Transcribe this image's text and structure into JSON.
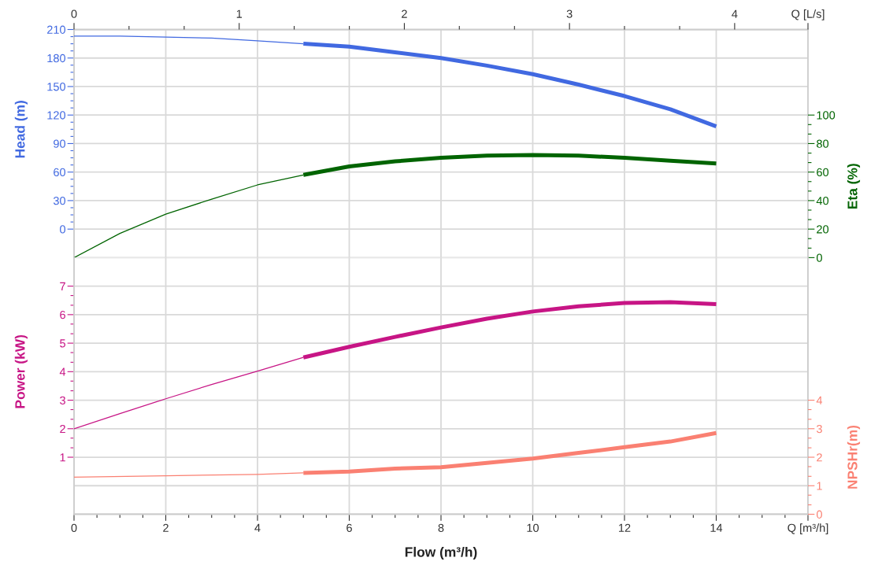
{
  "chart_data": [
    {
      "type": "line",
      "tick_labels": "y",
      "xlim": [
        0,
        16
      ],
      "xticks": [
        0,
        2,
        4,
        6,
        8,
        10,
        12,
        14
      ],
      "x2lim": [
        0,
        4.444
      ],
      "x2ticks": [
        0,
        {
          "value": 0.333,
          "label": null
        },
        {
          "value": 0.667,
          "label": null
        },
        1,
        {
          "value": 1.333,
          "label": null
        },
        {
          "value": 1.667,
          "label": null
        },
        2,
        {
          "value": 2.333,
          "label": null
        },
        {
          "value": 2.667,
          "label": null
        },
        3,
        {
          "value": 3.333,
          "label": null
        },
        {
          "value": 3.667,
          "label": null
        },
        4,
        {
          "value": 4.444,
          "label": "Q [L/s]"
        }
      ],
      "ylabel": "Head (m)",
      "ylim": [
        -30,
        210
      ],
      "yticks": [
        0,
        {
          "value": 7.5,
          "label": null
        },
        {
          "value": 15,
          "label": null
        },
        {
          "value": 22.5,
          "label": null
        },
        30,
        {
          "value": 37.5,
          "label": null
        },
        {
          "value": 45,
          "label": null
        },
        {
          "value": 52.5,
          "label": null
        },
        60,
        {
          "value": 67.5,
          "label": null
        },
        {
          "value": 75,
          "label": null
        },
        {
          "value": 82.5,
          "label": null
        },
        90,
        {
          "value": 97.5,
          "label": null
        },
        {
          "value": 105,
          "label": null
        },
        {
          "value": 112.5,
          "label": null
        },
        120,
        {
          "value": 127.5,
          "label": null
        },
        {
          "value": 135,
          "label": null
        },
        {
          "value": 142.5,
          "label": null
        },
        150,
        {
          "value": 157.5,
          "label": null
        },
        {
          "value": 165,
          "label": null
        },
        {
          "value": 172.5,
          "label": null
        },
        180,
        {
          "value": 187.5,
          "label": null
        },
        {
          "value": 195,
          "label": null
        },
        {
          "value": 202.5,
          "label": null
        },
        210
      ],
      "y2label": "Eta (%)",
      "y2lim": [
        0,
        160
      ],
      "y2ticks": [
        0,
        {
          "value": 6.67,
          "label": null
        },
        {
          "value": 13.33,
          "label": null
        },
        20,
        {
          "value": 26.67,
          "label": null
        },
        {
          "value": 33.33,
          "label": null
        },
        40,
        {
          "value": 46.67,
          "label": null
        },
        {
          "value": 53.33,
          "label": null
        },
        60,
        {
          "value": 66.67,
          "label": null
        },
        {
          "value": 73.33,
          "label": null
        },
        80,
        {
          "value": 86.67,
          "label": null
        },
        {
          "value": 93.33,
          "label": null
        },
        100
      ],
      "grid": true,
      "series": [
        {
          "axis": "y",
          "color": "#4169e1",
          "x": [
            0,
            1,
            2,
            3,
            4,
            5
          ],
          "values": [
            203,
            203,
            202,
            201,
            198,
            195
          ]
        },
        {
          "axis": "y",
          "color": "#4169e1",
          "x": [
            5,
            6,
            7,
            8,
            9,
            10,
            11,
            12,
            13,
            14
          ],
          "values": [
            195,
            192,
            186,
            180,
            172,
            163,
            152,
            140,
            126,
            108
          ]
        },
        {
          "axis": "y2",
          "color": "#006400",
          "x": [
            0,
            1,
            2,
            3,
            4,
            5
          ],
          "values": [
            0,
            17,
            30.5,
            41,
            51,
            58
          ]
        },
        {
          "axis": "y2",
          "color": "#006400",
          "x": [
            5,
            6,
            7,
            8,
            9,
            10,
            11,
            12,
            13,
            14
          ],
          "values": [
            58,
            64,
            67.5,
            70,
            71.5,
            72,
            71.5,
            70,
            68,
            66
          ]
        }
      ]
    },
    {
      "type": "line",
      "xlabel": "Flow (m³/h)",
      "xlim": [
        0,
        16
      ],
      "xticks": [
        0,
        {
          "value": 0.5,
          "label": null
        },
        {
          "value": 1,
          "label": null
        },
        {
          "value": 1.5,
          "label": null
        },
        2,
        {
          "value": 2.5,
          "label": null
        },
        {
          "value": 3,
          "label": null
        },
        {
          "value": 3.5,
          "label": null
        },
        4,
        {
          "value": 4.5,
          "label": null
        },
        {
          "value": 5,
          "label": null
        },
        {
          "value": 5.5,
          "label": null
        },
        6,
        {
          "value": 6.5,
          "label": null
        },
        {
          "value": 7,
          "label": null
        },
        {
          "value": 7.5,
          "label": null
        },
        8,
        {
          "value": 8.5,
          "label": null
        },
        {
          "value": 9,
          "label": null
        },
        {
          "value": 9.5,
          "label": null
        },
        10,
        {
          "value": 10.5,
          "label": null
        },
        {
          "value": 11,
          "label": null
        },
        {
          "value": 11.5,
          "label": null
        },
        12,
        {
          "value": 12.5,
          "label": null
        },
        {
          "value": 13,
          "label": null
        },
        {
          "value": 13.5,
          "label": null
        },
        14,
        {
          "value": 14.5,
          "label": null
        },
        {
          "value": 15,
          "label": null
        },
        {
          "value": 15.5,
          "label": null
        },
        {
          "value": 16,
          "label": "Q [m³/h]"
        }
      ],
      "ylabel": "Power (kW)",
      "ylim": [
        -1,
        8
      ],
      "yticks": [
        1,
        {
          "value": 1.33,
          "label": null
        },
        {
          "value": 1.67,
          "label": null
        },
        2,
        {
          "value": 2.33,
          "label": null
        },
        {
          "value": 2.67,
          "label": null
        },
        3,
        {
          "value": 3.33,
          "label": null
        },
        {
          "value": 3.67,
          "label": null
        },
        4,
        {
          "value": 4.33,
          "label": null
        },
        {
          "value": 4.67,
          "label": null
        },
        5,
        {
          "value": 5.33,
          "label": null
        },
        {
          "value": 5.67,
          "label": null
        },
        6,
        {
          "value": 6.33,
          "label": null
        },
        {
          "value": 6.67,
          "label": null
        },
        7
      ],
      "y2label": "NPSHr(m)",
      "y2lim": [
        0,
        9
      ],
      "y2ticks": [
        0,
        {
          "value": 0.33,
          "label": null
        },
        {
          "value": 0.67,
          "label": null
        },
        1,
        {
          "value": 1.33,
          "label": null
        },
        {
          "value": 1.67,
          "label": null
        },
        2,
        {
          "value": 2.33,
          "label": null
        },
        {
          "value": 2.67,
          "label": null
        },
        3,
        {
          "value": 3.33,
          "label": null
        },
        {
          "value": 3.67,
          "label": null
        },
        4
      ],
      "grid": true,
      "series": [
        {
          "axis": "y",
          "color": "#c71585",
          "x": [
            0,
            1,
            2,
            3,
            4,
            5
          ],
          "values": [
            2.0,
            2.53,
            3.05,
            3.55,
            4.02,
            4.5
          ]
        },
        {
          "axis": "y",
          "color": "#c71585",
          "x": [
            5,
            6,
            7,
            8,
            9,
            10,
            11,
            12,
            13,
            14
          ],
          "values": [
            4.5,
            4.87,
            5.22,
            5.55,
            5.86,
            6.11,
            6.29,
            6.41,
            6.44,
            6.37
          ]
        },
        {
          "axis": "y2",
          "color": "#fa8072",
          "x": [
            0,
            2,
            4,
            5
          ],
          "values": [
            1.3,
            1.35,
            1.4,
            1.45
          ]
        },
        {
          "axis": "y2",
          "color": "#fa8072",
          "x": [
            5,
            6,
            7,
            8,
            9,
            10,
            11,
            12,
            13,
            14
          ],
          "values": [
            1.45,
            1.5,
            1.6,
            1.65,
            1.8,
            1.95,
            2.15,
            2.35,
            2.55,
            2.85
          ]
        }
      ]
    }
  ]
}
